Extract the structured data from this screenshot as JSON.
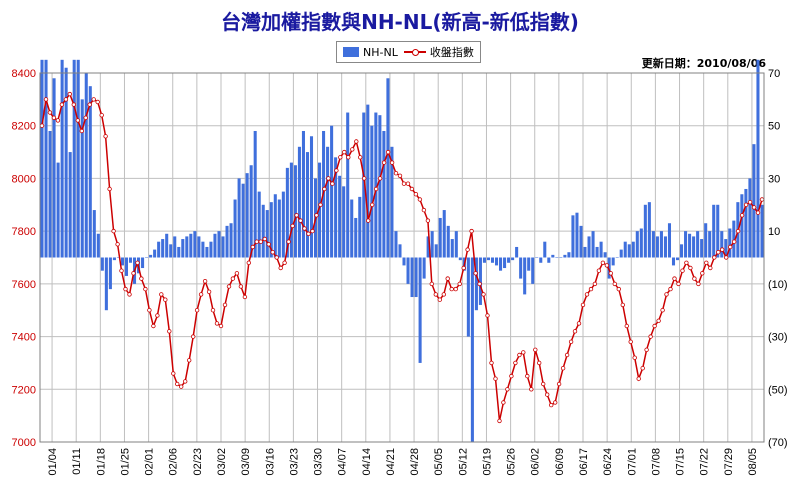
{
  "header": {
    "title": "台灣加權指數與NH-NL(新高-新低指數)",
    "update": "更新日期：2010/08/06"
  },
  "legend": {
    "bar_label": "NH-NL",
    "line_label": "收盤指數"
  },
  "colors": {
    "bar": "#3f6fdc",
    "line": "#cc0000",
    "left_axis": "#cc0000",
    "right_axis": "#000000",
    "grid": "#bfbfbf"
  },
  "chart_data": {
    "type": "bar",
    "title": "台灣加權指數與NH-NL(新高-新低指數)",
    "x_tick_labels": [
      "01/04",
      "01/11",
      "01/18",
      "01/25",
      "02/01",
      "02/06",
      "02/23",
      "03/02",
      "03/09",
      "03/16",
      "03/23",
      "03/30",
      "04/07",
      "04/14",
      "04/21",
      "04/28",
      "05/05",
      "05/12",
      "05/19",
      "05/26",
      "06/02",
      "06/09",
      "06/17",
      "06/24",
      "07/01",
      "07/08",
      "07/15",
      "07/22",
      "07/29",
      "08/05"
    ],
    "left_axis": {
      "ticks": [
        "8400",
        "8200",
        "8000",
        "7800",
        "7600",
        "7400",
        "7200",
        "7000"
      ],
      "ylim": [
        7000,
        8400
      ]
    },
    "right_axis": {
      "ticks": [
        "70",
        "50",
        "30",
        "10",
        "(10)",
        "(30)",
        "(50)",
        "(70)"
      ],
      "ylim": [
        -70,
        70
      ]
    },
    "grid": true,
    "legend_position": "top",
    "series": [
      {
        "name": "NH-NL",
        "axis": "right",
        "kind": "bar",
        "values": [
          75,
          75,
          48,
          68,
          36,
          75,
          72,
          40,
          75,
          75,
          60,
          70,
          65,
          18,
          9,
          -5,
          -20,
          -12,
          -1,
          0,
          -3,
          -7,
          -2,
          -10,
          -6,
          -4,
          0,
          1,
          3,
          6,
          7,
          9,
          5,
          8,
          4,
          7,
          8,
          9,
          10,
          8,
          6,
          4,
          6,
          9,
          10,
          8,
          12,
          13,
          22,
          30,
          28,
          32,
          35,
          48,
          25,
          20,
          18,
          21,
          24,
          22,
          25,
          34,
          36,
          35,
          42,
          48,
          40,
          46,
          30,
          36,
          48,
          42,
          50,
          38,
          31,
          27,
          55,
          22,
          15,
          23,
          55,
          58,
          50,
          55,
          54,
          48,
          68,
          42,
          10,
          5,
          -3,
          -10,
          -15,
          -15,
          -40,
          -8,
          8,
          10,
          5,
          15,
          18,
          12,
          7,
          10,
          -1,
          -5,
          -30,
          -70,
          -20,
          -18,
          -2,
          -1,
          -2,
          -3,
          -5,
          -4,
          -2,
          -1,
          4,
          -8,
          -14,
          -5,
          -10,
          0,
          -2,
          6,
          -2,
          1,
          0,
          0,
          1,
          2,
          16,
          17,
          12,
          4,
          8,
          10,
          4,
          6,
          2,
          -8,
          -3,
          0,
          3,
          6,
          5,
          6,
          10,
          11,
          20,
          21,
          10,
          8,
          10,
          8,
          13,
          -3,
          -1,
          5,
          10,
          9,
          8,
          10,
          7,
          13,
          10,
          20,
          20,
          10,
          7,
          11,
          14,
          21,
          24,
          26,
          30,
          43,
          75,
          20
        ]
      },
      {
        "name": "收盤指數",
        "axis": "left",
        "kind": "line",
        "values": [
          8200,
          8300,
          8250,
          8230,
          8220,
          8280,
          8300,
          8320,
          8280,
          8220,
          8180,
          8230,
          8280,
          8300,
          8290,
          8240,
          8160,
          7960,
          7800,
          7750,
          7650,
          7580,
          7560,
          7640,
          7680,
          7620,
          7580,
          7500,
          7440,
          7480,
          7560,
          7540,
          7420,
          7260,
          7220,
          7210,
          7230,
          7310,
          7400,
          7500,
          7560,
          7610,
          7570,
          7500,
          7450,
          7440,
          7520,
          7590,
          7620,
          7640,
          7590,
          7550,
          7680,
          7740,
          7760,
          7760,
          7770,
          7750,
          7720,
          7700,
          7660,
          7680,
          7760,
          7820,
          7860,
          7840,
          7810,
          7790,
          7800,
          7860,
          7900,
          7960,
          8000,
          7980,
          8030,
          8080,
          8100,
          8080,
          8110,
          8140,
          8080,
          8000,
          7840,
          7900,
          7960,
          8000,
          8060,
          8100,
          8060,
          8020,
          8010,
          7980,
          7980,
          7960,
          7940,
          7920,
          7880,
          7840,
          7600,
          7560,
          7540,
          7560,
          7620,
          7580,
          7580,
          7600,
          7660,
          7730,
          7800,
          7640,
          7600,
          7560,
          7480,
          7300,
          7240,
          7080,
          7150,
          7200,
          7250,
          7300,
          7330,
          7340,
          7250,
          7200,
          7350,
          7300,
          7220,
          7180,
          7140,
          7150,
          7220,
          7280,
          7330,
          7380,
          7420,
          7450,
          7520,
          7560,
          7580,
          7600,
          7650,
          7680,
          7670,
          7640,
          7600,
          7580,
          7520,
          7440,
          7380,
          7320,
          7240,
          7280,
          7350,
          7400,
          7440,
          7460,
          7500,
          7560,
          7580,
          7620,
          7600,
          7650,
          7680,
          7660,
          7620,
          7600,
          7640,
          7680,
          7660,
          7700,
          7720,
          7730,
          7700,
          7740,
          7760,
          7800,
          7860,
          7900,
          7910,
          7890,
          7870,
          7920
        ]
      }
    ]
  }
}
